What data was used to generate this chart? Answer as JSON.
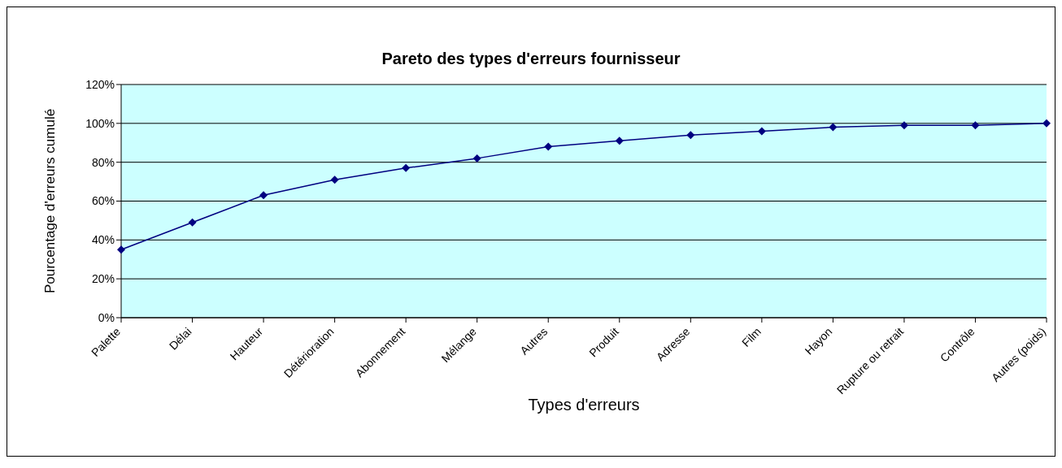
{
  "chart_data": {
    "type": "line",
    "title": "Pareto des types d'erreurs fournisseur",
    "xlabel": "Types d'erreurs",
    "ylabel": "Pourcentage d'erreurs cumulé",
    "categories": [
      "Palette",
      "Délai",
      "Hauteur",
      "Détérioration",
      "Abonnement",
      "Mélange",
      "Autres",
      "Produit",
      "Adresse",
      "Film",
      "Hayon",
      "Rupture ou retrait",
      "Contrôle",
      "Autres (poids)"
    ],
    "series": [
      {
        "color": "#000080",
        "values": [
          35,
          49,
          63,
          71,
          77,
          82,
          88,
          91,
          94,
          96,
          98,
          99,
          99,
          100
        ]
      }
    ],
    "ylim": [
      0,
      120
    ],
    "yticks": [
      {
        "value": 0,
        "label": "0%"
      },
      {
        "value": 20,
        "label": "20%"
      },
      {
        "value": 40,
        "label": "40%"
      },
      {
        "value": 60,
        "label": "60%"
      },
      {
        "value": 80,
        "label": "80%"
      },
      {
        "value": 100,
        "label": "100%"
      },
      {
        "value": 120,
        "label": "120%"
      }
    ],
    "grid": "y",
    "marker": "diamond",
    "line_style": "solid"
  }
}
